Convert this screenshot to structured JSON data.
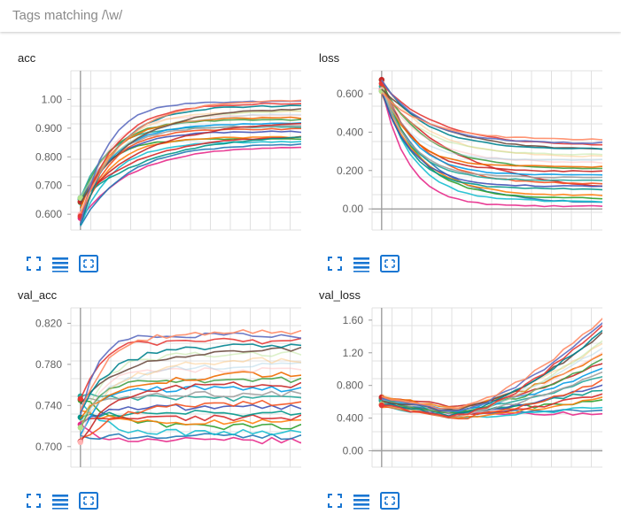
{
  "filter": {
    "label": "Tags matching /\\w/"
  },
  "colors": {
    "accent": "#1976d2",
    "axis": "#9e9e9e",
    "grid": "#e0e0e0"
  },
  "icons": [
    "fullscreen-icon",
    "legend-list-icon",
    "fit-domain-icon"
  ],
  "chart_data": [
    {
      "title": "acc",
      "type": "line",
      "xlabel": "",
      "ylabel": "",
      "ytick_labels": [
        "0.600",
        "0.700",
        "0.800",
        "0.900",
        "1.00"
      ],
      "ytick_values": [
        0.6,
        0.7,
        0.8,
        0.9,
        1.0
      ],
      "ylim": [
        0.545,
        1.1
      ],
      "xlim": [
        -1,
        24
      ],
      "grid": true,
      "start_range": [
        0.56,
        0.66
      ],
      "end_range": [
        0.84,
        1.0
      ],
      "steps": 24,
      "notes_shape": "rising"
    },
    {
      "title": "loss",
      "type": "line",
      "xlabel": "",
      "ylabel": "",
      "ytick_labels": [
        "0.00",
        "0.200",
        "0.400",
        "0.600"
      ],
      "ytick_values": [
        0.0,
        0.2,
        0.4,
        0.6
      ],
      "ylim": [
        -0.11,
        0.72
      ],
      "xlim": [
        -1,
        24
      ],
      "grid": true,
      "start_range": [
        0.6,
        0.68
      ],
      "end_range": [
        0.01,
        0.36
      ],
      "steps": 24,
      "notes_shape": "falling"
    },
    {
      "title": "val_acc",
      "type": "line",
      "xlabel": "",
      "ylabel": "",
      "ytick_labels": [
        "0.700",
        "0.740",
        "0.780",
        "0.820"
      ],
      "ytick_values": [
        0.7,
        0.74,
        0.78,
        0.82
      ],
      "ylim": [
        0.68,
        0.835
      ],
      "xlim": [
        -1,
        24
      ],
      "grid": true,
      "start_range": [
        0.7,
        0.75
      ],
      "end_range": [
        0.705,
        0.812
      ],
      "steps": 24,
      "notes_shape": "plateau"
    },
    {
      "title": "val_loss",
      "type": "line",
      "xlabel": "",
      "ylabel": "",
      "ytick_labels": [
        "0.00",
        "0.400",
        "0.800",
        "1.20",
        "1.60"
      ],
      "ytick_values": [
        0.0,
        0.4,
        0.8,
        1.2,
        1.6
      ],
      "ylim": [
        -0.2,
        1.75
      ],
      "xlim": [
        -1,
        24
      ],
      "grid": true,
      "start_range": [
        0.53,
        0.68
      ],
      "end_range": [
        0.45,
        1.72
      ],
      "steps": 24,
      "notes_shape": "dip-then-rise"
    }
  ],
  "series_colors": [
    "#e7298a",
    "#1f77b4",
    "#17becf",
    "#2ca02c",
    "#ff7f0e",
    "#d62728",
    "#009688",
    "#3f51b5",
    "#f4511e",
    "#26a69a",
    "#9e9e9e",
    "#039be5",
    "#c62828",
    "#43a047",
    "#ef6c00",
    "#ffb3b3",
    "#a6cee3",
    "#fdbf6f",
    "#b2df8a",
    "#6d4c41",
    "#00838f",
    "#e53935",
    "#5c6bc0",
    "#ff8a65"
  ]
}
